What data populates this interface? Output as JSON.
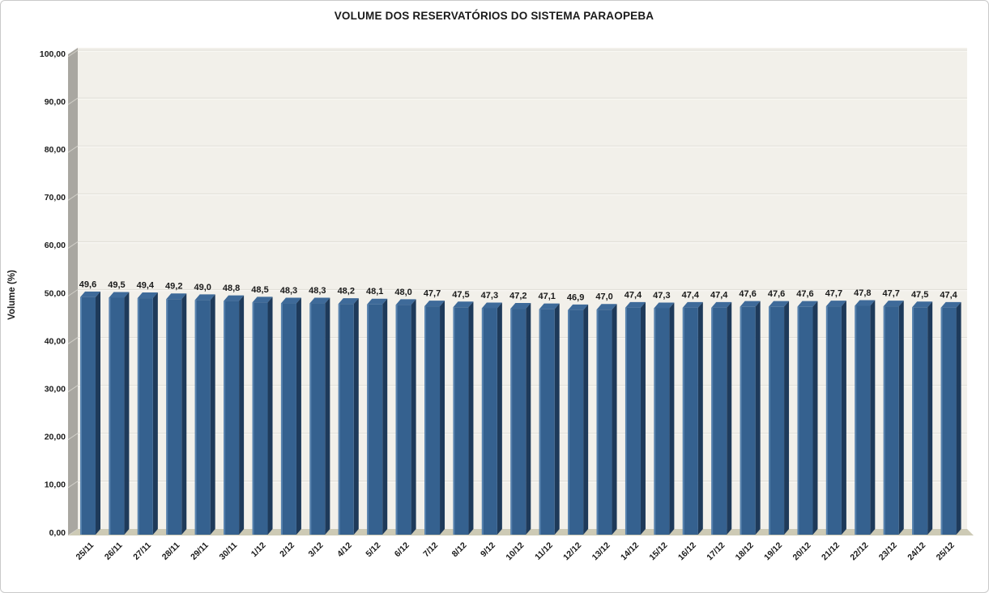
{
  "chart_data": {
    "type": "bar",
    "title": "VOLUME DOS RESERVATÓRIOS DO SISTEMA PARAOPEBA",
    "xlabel": "",
    "ylabel": "Volume (%)",
    "ylim": [
      0,
      100
    ],
    "grid": true,
    "legend": "none",
    "style_3d": true,
    "categories": [
      "25/11",
      "26/11",
      "27/11",
      "28/11",
      "29/11",
      "30/11",
      "1/12",
      "2/12",
      "3/12",
      "4/12",
      "5/12",
      "6/12",
      "7/12",
      "8/12",
      "9/12",
      "10/12",
      "11/12",
      "12/12",
      "13/12",
      "14/12",
      "15/12",
      "16/12",
      "17/12",
      "18/12",
      "19/12",
      "20/12",
      "21/12",
      "22/12",
      "23/12",
      "24/12",
      "25/12"
    ],
    "values": [
      49.6,
      49.5,
      49.4,
      49.2,
      49.0,
      48.8,
      48.5,
      48.3,
      48.3,
      48.2,
      48.1,
      48.0,
      47.7,
      47.5,
      47.3,
      47.2,
      47.1,
      46.9,
      47.0,
      47.4,
      47.3,
      47.4,
      47.4,
      47.6,
      47.6,
      47.6,
      47.7,
      47.8,
      47.7,
      47.5,
      47.4
    ],
    "value_labels": [
      "49,6",
      "49,5",
      "49,4",
      "49,2",
      "49,0",
      "48,8",
      "48,5",
      "48,3",
      "48,3",
      "48,2",
      "48,1",
      "48,0",
      "47,7",
      "47,5",
      "47,3",
      "47,2",
      "47,1",
      "46,9",
      "47,0",
      "47,4",
      "47,3",
      "47,4",
      "47,4",
      "47,6",
      "47,6",
      "47,6",
      "47,7",
      "47,8",
      "47,7",
      "47,5",
      "47,4"
    ],
    "y_ticks": [
      "100,00",
      "90,00",
      "80,00",
      "70,00",
      "60,00",
      "50,00",
      "40,00",
      "30,00",
      "20,00",
      "10,00",
      "0,00"
    ],
    "colors": {
      "bar_front": "#35618F",
      "bar_side": "#1E3A5A",
      "bar_top": "#3E6A99",
      "bar_highlight": "#5B86B1",
      "back_wall": "#F2F0EA",
      "side_wall": "#A9A7A1",
      "side_wall_line": "#D2D0C9",
      "floor": "#CDCAB5",
      "gridline": "#E2E0D9",
      "gridline_light": "#FBFAF6",
      "text": "#1A1A1A"
    }
  }
}
